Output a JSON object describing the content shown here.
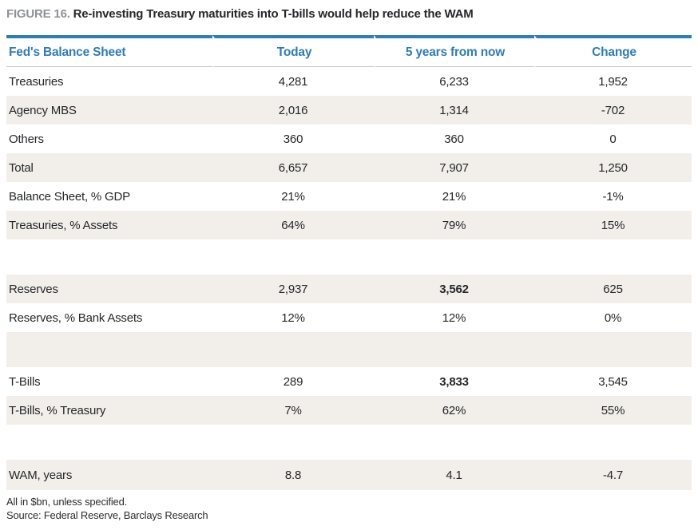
{
  "figure_label": "FIGURE 16.",
  "figure_title": "Re-investing Treasury maturities into T-bills would help reduce the WAM",
  "chart_data": {
    "type": "table",
    "title": "FIGURE 16. Re-investing Treasury maturities into T-bills would help reduce the WAM",
    "columns": [
      "Fed's Balance Sheet",
      "Today",
      "5 years from now",
      "Change"
    ],
    "rows": [
      {
        "label": "Treasuries",
        "values": [
          "4,281",
          "6,233",
          "1,952"
        ],
        "shaded": false,
        "spacer": false,
        "bold_values": []
      },
      {
        "label": "Agency MBS",
        "values": [
          "2,016",
          "1,314",
          "-702"
        ],
        "shaded": true,
        "spacer": false,
        "bold_values": []
      },
      {
        "label": "Others",
        "values": [
          "360",
          "360",
          "0"
        ],
        "shaded": false,
        "spacer": false,
        "bold_values": []
      },
      {
        "label": "Total",
        "values": [
          "6,657",
          "7,907",
          "1,250"
        ],
        "shaded": true,
        "spacer": false,
        "bold_values": []
      },
      {
        "label": "Balance Sheet, % GDP",
        "values": [
          "21%",
          "21%",
          "-1%"
        ],
        "shaded": false,
        "spacer": false,
        "bold_values": []
      },
      {
        "label": "Treasuries, % Assets",
        "values": [
          "64%",
          "79%",
          "15%"
        ],
        "shaded": true,
        "spacer": false,
        "bold_values": []
      },
      {
        "label": "",
        "values": [
          "",
          "",
          ""
        ],
        "shaded": false,
        "spacer": true,
        "bold_values": []
      },
      {
        "label": "Reserves",
        "values": [
          "2,937",
          "3,562",
          "625"
        ],
        "shaded": true,
        "spacer": false,
        "bold_values": [
          1
        ]
      },
      {
        "label": "Reserves, % Bank Assets",
        "values": [
          "12%",
          "12%",
          "0%"
        ],
        "shaded": false,
        "spacer": false,
        "bold_values": []
      },
      {
        "label": "",
        "values": [
          "",
          "",
          ""
        ],
        "shaded": true,
        "spacer": true,
        "bold_values": []
      },
      {
        "label": "T-Bills",
        "values": [
          "289",
          "3,833",
          "3,545"
        ],
        "shaded": false,
        "spacer": false,
        "bold_values": [
          1
        ]
      },
      {
        "label": "T-Bills, % Treasury",
        "values": [
          "7%",
          "62%",
          "55%"
        ],
        "shaded": true,
        "spacer": false,
        "bold_values": []
      },
      {
        "label": "",
        "values": [
          "",
          "",
          ""
        ],
        "shaded": false,
        "spacer": true,
        "bold_values": []
      },
      {
        "label": "WAM, years",
        "values": [
          "8.8",
          "4.1",
          "-4.7"
        ],
        "shaded": true,
        "spacer": false,
        "bold_values": []
      }
    ],
    "footnotes": [
      "All in $bn, unless specified.",
      "Source: Federal Reserve, Barclays Research"
    ],
    "layout": {
      "grid": "off",
      "legend": "none",
      "shading": "alternating-rows"
    }
  },
  "colors": {
    "accent_blue": "#2e7db6",
    "shaded_row": "#f2efea",
    "figure_label_gray": "#8e9296",
    "header_rule_gray": "#c8c6c3"
  }
}
